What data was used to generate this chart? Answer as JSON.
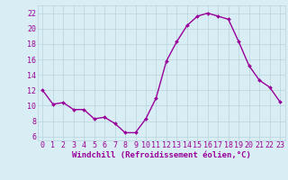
{
  "x": [
    0,
    1,
    2,
    3,
    4,
    5,
    6,
    7,
    8,
    9,
    10,
    11,
    12,
    13,
    14,
    15,
    16,
    17,
    18,
    19,
    20,
    21,
    22,
    23
  ],
  "y": [
    12,
    10.2,
    10.4,
    9.5,
    9.5,
    8.3,
    8.5,
    7.7,
    6.5,
    6.5,
    8.3,
    11.0,
    15.8,
    18.3,
    20.4,
    21.6,
    22.0,
    21.6,
    21.2,
    18.3,
    15.2,
    13.3,
    12.4,
    10.5
  ],
  "line_color": "#990099",
  "marker": "D",
  "marker_size": 2.0,
  "line_width": 1.0,
  "xlim": [
    -0.5,
    23.5
  ],
  "ylim": [
    5.5,
    23.0
  ],
  "yticks": [
    6,
    8,
    10,
    12,
    14,
    16,
    18,
    20,
    22
  ],
  "xticks": [
    0,
    1,
    2,
    3,
    4,
    5,
    6,
    7,
    8,
    9,
    10,
    11,
    12,
    13,
    14,
    15,
    16,
    17,
    18,
    19,
    20,
    21,
    22,
    23
  ],
  "xlabel": "Windchill (Refroidissement éolien,°C)",
  "xlabel_color": "#990099",
  "xlabel_fontsize": 6.5,
  "tick_label_color": "#990099",
  "tick_label_fontsize": 6,
  "background_color": "#d8eef4",
  "grid_color": "#b8d4dc",
  "grid_linewidth": 0.5
}
